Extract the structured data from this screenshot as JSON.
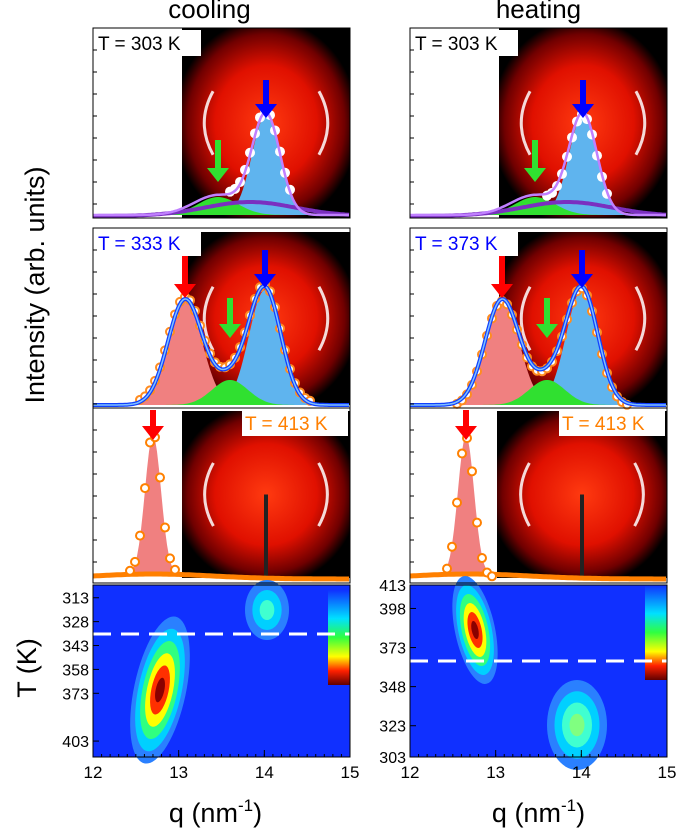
{
  "figure": {
    "columns": [
      {
        "title": "cooling",
        "panels": [
          {
            "label": "T = 303 K",
            "color": "#000000"
          },
          {
            "label": "T = 333 K",
            "color": "#0000ff"
          },
          {
            "label": "T = 413 K",
            "color": "#ff7f00"
          }
        ],
        "heatmap": {
          "ylim": [
            305,
            413
          ],
          "yticks": [
            313,
            328,
            343,
            358,
            373,
            403
          ]
        }
      },
      {
        "title": "heating",
        "panels": [
          {
            "label": "T = 303 K",
            "color": "#000000"
          },
          {
            "label": "T = 373 K",
            "color": "#0000ff"
          },
          {
            "label": "T = 413 K",
            "color": "#ff7f00"
          }
        ],
        "heatmap": {
          "ylim": [
            413,
            303
          ],
          "yticks": [
            413,
            398,
            373,
            348,
            323,
            303
          ]
        }
      }
    ],
    "y_label_top": "Intensity (arb. units)",
    "y_label_bottom": "T (K)",
    "x_label": {
      "text": "q (nm",
      "sup": "-1",
      "end": ")"
    },
    "xlim": [
      12,
      15
    ],
    "xticks": [
      12,
      13,
      14,
      15
    ]
  }
}
